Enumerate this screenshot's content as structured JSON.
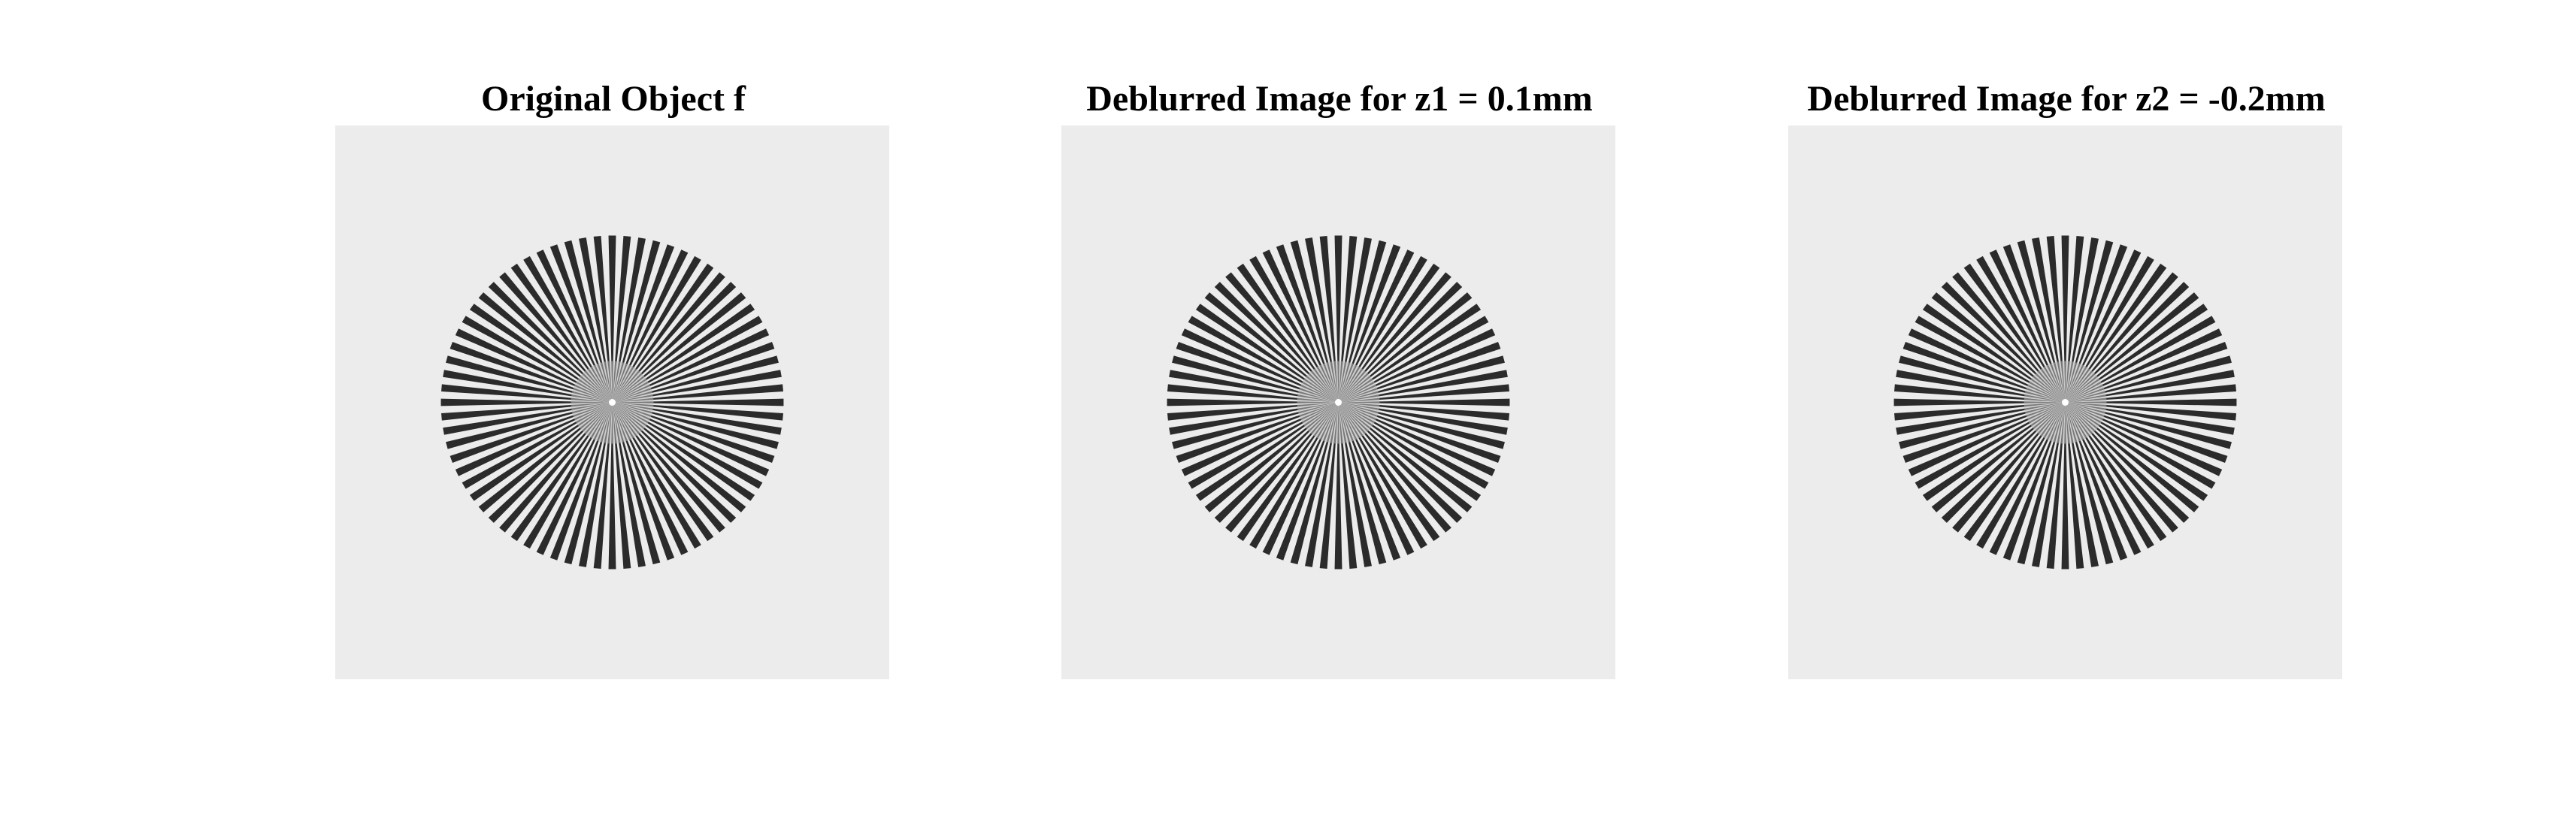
{
  "figure": {
    "panels": [
      {
        "title": "Original Object f",
        "spoke_count": 72
      },
      {
        "title": "Deblurred Image for z1 = 0.1mm",
        "spoke_count": 72
      },
      {
        "title": "Deblurred Image for z2 = -0.2mm",
        "spoke_count": 72
      }
    ],
    "colors": {
      "background": "#ececec",
      "spoke": "#2b2b2b",
      "center": "#b8b8b8",
      "center_dot": "#ffffff"
    }
  }
}
